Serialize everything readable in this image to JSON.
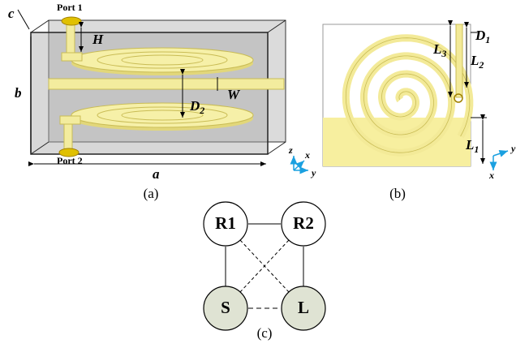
{
  "panel_a": {
    "port_top": "Port 1",
    "port_bottom": "Port 2",
    "c": "c",
    "h": "H",
    "b": "b",
    "w": "W",
    "d2": [
      "D",
      "2"
    ],
    "a": "a",
    "axes": [
      "z",
      "x",
      "y"
    ],
    "caption": "(a)"
  },
  "panel_b": {
    "d1": [
      "D",
      "1"
    ],
    "l3": [
      "L",
      "3"
    ],
    "l2": [
      "L",
      "2"
    ],
    "l1": [
      "L",
      "1"
    ],
    "axes": [
      "y",
      "x"
    ],
    "caption": "(b)"
  },
  "panel_c": {
    "nodes": [
      "R1",
      "R2",
      "S",
      "L"
    ],
    "caption": "(c)"
  }
}
